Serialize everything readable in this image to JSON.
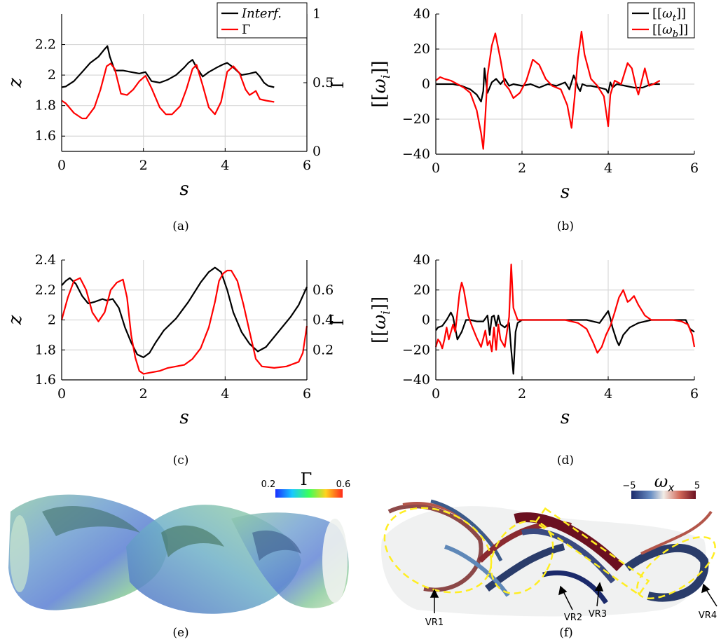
{
  "chart_data": [
    {
      "id": "a",
      "type": "line",
      "caption": "(a)",
      "xlabel": "s",
      "ylabel": "z",
      "ylabel_right": "Γ",
      "xlim": [
        0,
        6
      ],
      "ylim": [
        1.5,
        2.4
      ],
      "ylim_right": [
        0,
        1
      ],
      "xticks": [
        0,
        2,
        4,
        6
      ],
      "yticks": [
        1.6,
        1.8,
        2,
        2.2
      ],
      "yticks_right": [
        0,
        0.5,
        1
      ],
      "grid": true,
      "legend": "top-right",
      "series": [
        {
          "name": "Interf.",
          "color": "#000000",
          "axis": "left",
          "x": [
            0,
            0.1,
            0.3,
            0.5,
            0.7,
            0.9,
            1.05,
            1.12,
            1.18,
            1.3,
            1.5,
            1.7,
            1.9,
            2.05,
            2.2,
            2.4,
            2.6,
            2.8,
            3.0,
            3.1,
            3.2,
            3.3,
            3.45,
            3.6,
            3.8,
            3.95,
            4.05,
            4.2,
            4.4,
            4.6,
            4.75,
            4.85,
            4.95,
            5.05,
            5.2
          ],
          "y": [
            1.92,
            1.925,
            1.96,
            2.02,
            2.08,
            2.12,
            2.17,
            2.19,
            2.12,
            2.03,
            2.03,
            2.02,
            2.01,
            2.02,
            1.96,
            1.95,
            1.97,
            2.0,
            2.05,
            2.08,
            2.1,
            2.05,
            1.99,
            2.02,
            2.05,
            2.07,
            2.08,
            2.05,
            2.0,
            2.01,
            2.02,
            1.99,
            1.95,
            1.93,
            1.92
          ]
        },
        {
          "name": "Γ",
          "color": "#ff0000",
          "axis": "right",
          "x": [
            0,
            0.1,
            0.3,
            0.5,
            0.6,
            0.8,
            0.95,
            1.1,
            1.2,
            1.3,
            1.45,
            1.6,
            1.75,
            1.9,
            2.05,
            2.2,
            2.4,
            2.55,
            2.7,
            2.9,
            3.05,
            3.2,
            3.3,
            3.45,
            3.6,
            3.75,
            3.9,
            4.05,
            4.2,
            4.35,
            4.5,
            4.6,
            4.75,
            4.85,
            5.0,
            5.2
          ],
          "y": [
            0.37,
            0.35,
            0.28,
            0.24,
            0.24,
            0.32,
            0.45,
            0.62,
            0.64,
            0.6,
            0.42,
            0.41,
            0.45,
            0.51,
            0.55,
            0.46,
            0.32,
            0.27,
            0.27,
            0.33,
            0.45,
            0.6,
            0.63,
            0.48,
            0.32,
            0.27,
            0.36,
            0.58,
            0.62,
            0.57,
            0.45,
            0.41,
            0.44,
            0.38,
            0.37,
            0.36
          ]
        }
      ]
    },
    {
      "id": "b",
      "type": "line",
      "caption": "(b)",
      "xlabel": "s",
      "ylabel": "[[ω_i]]",
      "xlim": [
        0,
        6
      ],
      "ylim": [
        -40,
        40
      ],
      "xticks": [
        0,
        2,
        4,
        6
      ],
      "yticks": [
        -40,
        -20,
        0,
        20,
        40
      ],
      "grid": true,
      "legend": "top-right",
      "series": [
        {
          "name": "[[ω_t]]",
          "color": "#000000",
          "x": [
            0,
            0.4,
            0.6,
            0.8,
            0.95,
            1.05,
            1.1,
            1.13,
            1.16,
            1.2,
            1.3,
            1.4,
            1.5,
            1.6,
            1.7,
            1.8,
            2.0,
            2.2,
            2.4,
            2.6,
            2.8,
            3.0,
            3.1,
            3.2,
            3.25,
            3.3,
            3.35,
            3.4,
            3.5,
            3.6,
            3.8,
            3.95,
            4.0,
            4.05,
            4.1,
            4.2,
            4.4,
            4.6,
            4.8,
            5.0,
            5.2
          ],
          "y": [
            0,
            0,
            -1,
            -3,
            -6,
            -10,
            -4,
            9,
            2,
            -5,
            1,
            3,
            0,
            3,
            -1,
            0,
            -1,
            0,
            -2,
            0,
            -1,
            1,
            -3,
            5,
            2,
            -2,
            -4,
            0,
            -1,
            -1,
            -2,
            -3,
            -5,
            1,
            -2,
            0,
            -1,
            -2,
            -2,
            0,
            0
          ]
        },
        {
          "name": "[[ω_b]]",
          "color": "#ff0000",
          "x": [
            0,
            0.1,
            0.2,
            0.35,
            0.5,
            0.65,
            0.8,
            0.95,
            1.05,
            1.1,
            1.15,
            1.2,
            1.3,
            1.38,
            1.5,
            1.6,
            1.7,
            1.8,
            1.95,
            2.1,
            2.25,
            2.4,
            2.55,
            2.7,
            2.9,
            3.05,
            3.15,
            3.22,
            3.3,
            3.38,
            3.45,
            3.6,
            3.75,
            3.9,
            4.0,
            4.05,
            4.15,
            4.3,
            4.45,
            4.55,
            4.65,
            4.7,
            4.78,
            4.85,
            4.95,
            5.05,
            5.2
          ],
          "y": [
            2,
            4,
            3,
            2,
            0,
            -2,
            -5,
            -15,
            -28,
            -37,
            -18,
            5,
            22,
            29,
            14,
            0,
            -3,
            -8,
            -5,
            2,
            14,
            11,
            3,
            -1,
            -3,
            -12,
            -25,
            -8,
            15,
            30,
            17,
            3,
            -1,
            -7,
            -24,
            -6,
            2,
            0,
            12,
            9,
            -2,
            -6,
            2,
            9,
            -1,
            0,
            2
          ]
        }
      ]
    },
    {
      "id": "c",
      "type": "line",
      "caption": "(c)",
      "xlabel": "s",
      "ylabel": "z",
      "ylabel_right": "Γ",
      "xlim": [
        0,
        6
      ],
      "ylim": [
        1.6,
        2.4
      ],
      "ylim_right": [
        0,
        0.8
      ],
      "xticks": [
        0,
        2,
        4,
        6
      ],
      "yticks": [
        1.6,
        1.8,
        2,
        2.2,
        2.4
      ],
      "yticks_right": [
        0.2,
        0.4,
        0.6
      ],
      "grid": true,
      "series": [
        {
          "name": "Interf.",
          "color": "#000000",
          "axis": "left",
          "x": [
            0,
            0.1,
            0.2,
            0.35,
            0.5,
            0.65,
            0.8,
            1.0,
            1.1,
            1.25,
            1.4,
            1.55,
            1.7,
            1.85,
            2.0,
            2.15,
            2.3,
            2.5,
            2.8,
            3.1,
            3.4,
            3.6,
            3.75,
            3.9,
            4.05,
            4.2,
            4.4,
            4.6,
            4.8,
            5.0,
            5.3,
            5.6,
            5.8,
            6.0
          ],
          "y": [
            2.23,
            2.26,
            2.28,
            2.24,
            2.16,
            2.11,
            2.12,
            2.14,
            2.13,
            2.14,
            2.08,
            1.95,
            1.85,
            1.77,
            1.75,
            1.78,
            1.85,
            1.93,
            2.01,
            2.12,
            2.25,
            2.32,
            2.35,
            2.32,
            2.2,
            2.05,
            1.92,
            1.84,
            1.79,
            1.82,
            1.92,
            2.02,
            2.1,
            2.22
          ]
        },
        {
          "name": "Γ",
          "color": "#ff0000",
          "axis": "right",
          "x": [
            0,
            0.15,
            0.3,
            0.45,
            0.6,
            0.75,
            0.9,
            1.05,
            1.2,
            1.35,
            1.5,
            1.6,
            1.7,
            1.8,
            1.9,
            2.0,
            2.2,
            2.4,
            2.6,
            2.8,
            3.0,
            3.2,
            3.4,
            3.6,
            3.75,
            3.85,
            3.95,
            4.05,
            4.15,
            4.3,
            4.45,
            4.6,
            4.75,
            4.9,
            5.2,
            5.5,
            5.8,
            5.9,
            6.0
          ],
          "y": [
            0.4,
            0.55,
            0.66,
            0.68,
            0.6,
            0.45,
            0.39,
            0.45,
            0.6,
            0.65,
            0.67,
            0.55,
            0.3,
            0.15,
            0.06,
            0.04,
            0.05,
            0.06,
            0.08,
            0.09,
            0.1,
            0.14,
            0.21,
            0.35,
            0.52,
            0.66,
            0.71,
            0.73,
            0.73,
            0.66,
            0.5,
            0.32,
            0.14,
            0.09,
            0.08,
            0.09,
            0.12,
            0.18,
            0.36
          ]
        }
      ]
    },
    {
      "id": "d",
      "type": "line",
      "caption": "(d)",
      "xlabel": "s",
      "ylabel": "[[ω_i]]",
      "xlim": [
        0,
        6
      ],
      "ylim": [
        -40,
        40
      ],
      "xticks": [
        0,
        2,
        4,
        6
      ],
      "yticks": [
        -40,
        -20,
        0,
        20,
        40
      ],
      "grid": true,
      "series": [
        {
          "name": "[[ω_t]]",
          "color": "#000000",
          "x": [
            0,
            0.05,
            0.15,
            0.25,
            0.35,
            0.4,
            0.5,
            0.6,
            0.7,
            0.8,
            0.95,
            1.1,
            1.2,
            1.25,
            1.3,
            1.35,
            1.4,
            1.45,
            1.5,
            1.6,
            1.7,
            1.75,
            1.8,
            1.85,
            1.9,
            2.0,
            2.5,
            3.0,
            3.5,
            3.8,
            3.9,
            4.0,
            4.05,
            4.1,
            4.2,
            4.25,
            4.35,
            4.5,
            4.7,
            5.0,
            5.5,
            5.8,
            5.9,
            6.0
          ],
          "y": [
            -7,
            -5,
            -4,
            0,
            5,
            2,
            -13,
            -8,
            0,
            0,
            -1,
            -1,
            3,
            -10,
            2,
            3,
            -4,
            3,
            -3,
            -5,
            -2,
            -20,
            -36,
            -8,
            -2,
            0,
            0,
            0,
            0,
            -2,
            2,
            6,
            1,
            -5,
            -14,
            -17,
            -10,
            -5,
            -2,
            0,
            0,
            0,
            -6,
            -8
          ]
        },
        {
          "name": "[[ω_b]]",
          "color": "#ff0000",
          "x": [
            0,
            0.05,
            0.1,
            0.15,
            0.2,
            0.25,
            0.3,
            0.4,
            0.45,
            0.5,
            0.55,
            0.6,
            0.65,
            0.75,
            0.85,
            0.95,
            1.05,
            1.15,
            1.2,
            1.25,
            1.3,
            1.35,
            1.4,
            1.45,
            1.5,
            1.6,
            1.7,
            1.75,
            1.8,
            1.9,
            2.0,
            2.5,
            3.0,
            3.3,
            3.5,
            3.65,
            3.75,
            3.85,
            3.95,
            4.05,
            4.15,
            4.25,
            4.35,
            4.45,
            4.5,
            4.6,
            4.7,
            4.85,
            5.0,
            5.5,
            5.7,
            5.85,
            5.95,
            6.0
          ],
          "y": [
            -18,
            -13,
            -15,
            -19,
            -13,
            -5,
            -13,
            -3,
            -8,
            5,
            18,
            25,
            20,
            3,
            -5,
            -12,
            -18,
            -7,
            -17,
            -14,
            -21,
            -5,
            -20,
            -3,
            -13,
            -18,
            2,
            37,
            8,
            0,
            0,
            0,
            0,
            -2,
            -6,
            -15,
            -22,
            -18,
            -10,
            -4,
            5,
            15,
            20,
            12,
            13,
            16,
            10,
            3,
            0,
            0,
            -1,
            -3,
            -10,
            -18
          ]
        }
      ]
    }
  ],
  "panel_e": {
    "caption": "(e)",
    "colorbar": {
      "title": "Γ",
      "min_label": "0.2",
      "max_label": "0.6"
    }
  },
  "panel_f": {
    "caption": "(f)",
    "colorbar": {
      "title": "ω",
      "title_sub": "x",
      "min_label": "−5",
      "max_label": "5"
    },
    "annotations": [
      "VR1",
      "VR2",
      "VR3",
      "VR4"
    ]
  },
  "colors": {
    "black_series": "#000000",
    "red_series": "#ff0000",
    "grid": "#d9d9d9",
    "annotation_dash": "#ffee22"
  }
}
